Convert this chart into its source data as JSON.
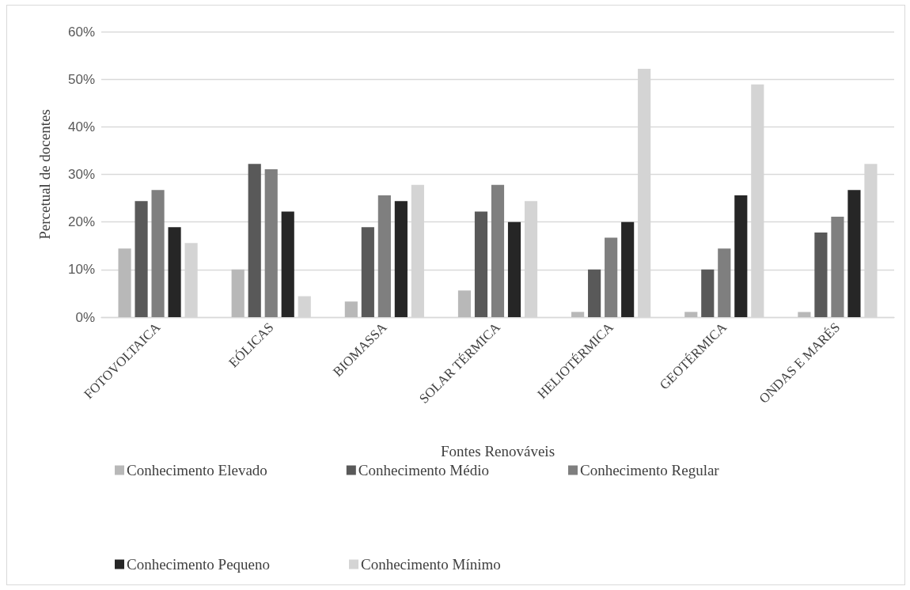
{
  "chart_data": {
    "type": "bar",
    "xlabel": "Fontes Renováveis",
    "ylabel": "Percetual de docentes",
    "categories": [
      "FOTOVOLTAICA",
      "EÓLICAS",
      "BIOMASSA",
      "SOLAR TÉRMICA",
      "HELIOTÉRMICA",
      "GEOTÉRMICA",
      "ONDAS E MARÉS"
    ],
    "series": [
      {
        "name": "Conhecimento Elevado",
        "color": "#b8b8b8",
        "values": [
          14.4,
          10,
          3.3,
          5.6,
          1.1,
          1.1,
          1.1
        ]
      },
      {
        "name": "Conhecimento Médio",
        "color": "#595959",
        "values": [
          24.4,
          32.2,
          18.9,
          22.2,
          10,
          10,
          17.8
        ]
      },
      {
        "name": "Conhecimento Regular",
        "color": "#7f7f7f",
        "values": [
          26.7,
          31.1,
          25.6,
          27.8,
          16.7,
          14.4,
          21.1
        ]
      },
      {
        "name": "Conhecimento Pequeno",
        "color": "#262626",
        "values": [
          18.9,
          22.2,
          24.4,
          20,
          20,
          25.6,
          26.7
        ]
      },
      {
        "name": "Conhecimento Mínimo",
        "color": "#d4d4d4",
        "values": [
          15.6,
          4.4,
          27.8,
          24.4,
          52.2,
          48.9,
          32.2
        ]
      }
    ],
    "ylim": [
      0,
      60
    ],
    "yticks": [
      {
        "value": 0,
        "label": "0%"
      },
      {
        "value": 10,
        "label": "10%"
      },
      {
        "value": 20,
        "label": "20%"
      },
      {
        "value": 30,
        "label": "30%"
      },
      {
        "value": 40,
        "label": "40%"
      },
      {
        "value": 50,
        "label": "50%"
      },
      {
        "value": 60,
        "label": "60%"
      }
    ],
    "grid": "y",
    "legend": "bottom"
  }
}
